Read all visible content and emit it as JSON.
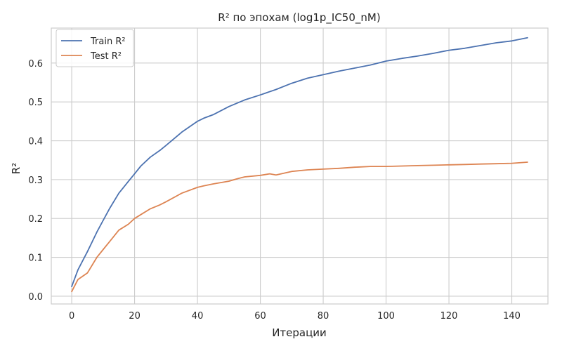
{
  "chart_data": {
    "type": "line",
    "title": "R² по эпохам (log1p_IC50_nM)",
    "xlabel": "Итерации",
    "ylabel": "R²",
    "xlim": [
      -6.5,
      151.5
    ],
    "ylim": [
      -0.02,
      0.69
    ],
    "xticks": [
      0,
      20,
      40,
      60,
      80,
      100,
      120,
      140
    ],
    "yticks": [
      0.0,
      0.1,
      0.2,
      0.3,
      0.4,
      0.5,
      0.6
    ],
    "ytick_labels": [
      "0.0",
      "0.1",
      "0.2",
      "0.3",
      "0.4",
      "0.5",
      "0.6"
    ],
    "grid": true,
    "legend_position": "upper-left",
    "series": [
      {
        "name": "Train R²",
        "color": "#4c72b0",
        "x": [
          0,
          2,
          5,
          8,
          10,
          12,
          15,
          18,
          20,
          22,
          25,
          28,
          30,
          35,
          40,
          42,
          45,
          50,
          55,
          60,
          65,
          70,
          75,
          80,
          85,
          90,
          95,
          100,
          105,
          110,
          115,
          120,
          125,
          130,
          135,
          140,
          145
        ],
        "y": [
          0.025,
          0.068,
          0.115,
          0.165,
          0.195,
          0.225,
          0.265,
          0.295,
          0.315,
          0.335,
          0.358,
          0.375,
          0.388,
          0.422,
          0.45,
          0.458,
          0.467,
          0.488,
          0.505,
          0.518,
          0.532,
          0.548,
          0.561,
          0.57,
          0.579,
          0.587,
          0.595,
          0.605,
          0.612,
          0.618,
          0.625,
          0.633,
          0.638,
          0.645,
          0.652,
          0.657,
          0.665
        ]
      },
      {
        "name": "Test R²",
        "color": "#dd8452",
        "x": [
          0,
          2,
          5,
          8,
          10,
          12,
          15,
          18,
          20,
          22,
          25,
          28,
          30,
          35,
          40,
          42,
          45,
          50,
          53,
          55,
          60,
          63,
          65,
          70,
          75,
          80,
          85,
          90,
          95,
          100,
          105,
          110,
          115,
          120,
          125,
          130,
          135,
          140,
          145
        ],
        "y": [
          0.012,
          0.043,
          0.06,
          0.1,
          0.12,
          0.14,
          0.17,
          0.185,
          0.2,
          0.21,
          0.225,
          0.235,
          0.243,
          0.265,
          0.28,
          0.284,
          0.289,
          0.296,
          0.303,
          0.307,
          0.311,
          0.315,
          0.312,
          0.321,
          0.325,
          0.327,
          0.329,
          0.332,
          0.334,
          0.334,
          0.335,
          0.336,
          0.337,
          0.338,
          0.339,
          0.34,
          0.341,
          0.342,
          0.345
        ]
      }
    ]
  }
}
